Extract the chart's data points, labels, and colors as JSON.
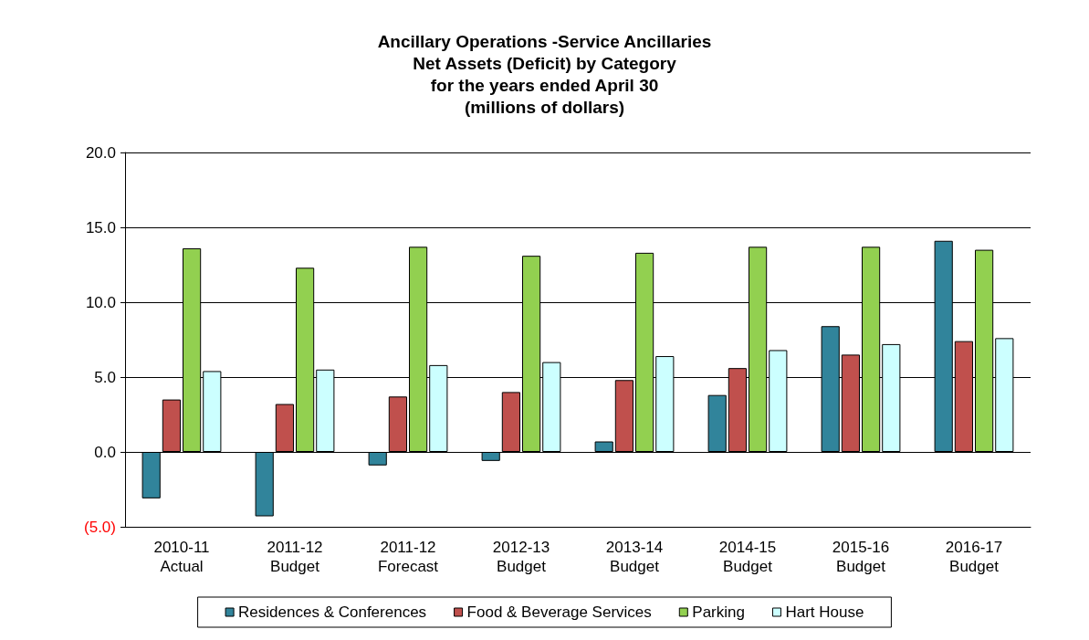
{
  "chart_data": {
    "type": "bar",
    "title": "Ancillary Operations -Service Ancillaries\nNet Assets (Deficit) by Category\nfor the years ended April 30\n(millions of dollars)",
    "categories": [
      "2010-11\nActual",
      "2011-12\nBudget",
      "2011-12\nForecast",
      "2012-13\nBudget",
      "2013-14\nBudget",
      "2014-15\nBudget",
      "2015-16\nBudget",
      "2016-17\nBudget"
    ],
    "series": [
      {
        "name": "Residences & Conferences",
        "color": "#31849b",
        "values": [
          -3.1,
          -4.3,
          -0.9,
          -0.6,
          0.7,
          3.8,
          8.4,
          14.1
        ]
      },
      {
        "name": "Food & Beverage Services",
        "color": "#c0504d",
        "values": [
          3.5,
          3.2,
          3.7,
          4.0,
          4.8,
          5.6,
          6.5,
          7.4
        ]
      },
      {
        "name": "Parking",
        "color": "#92d050",
        "values": [
          13.6,
          12.3,
          13.7,
          13.1,
          13.3,
          13.7,
          13.7,
          13.5
        ]
      },
      {
        "name": "Hart House",
        "color": "#ccffff",
        "values": [
          5.4,
          5.5,
          5.8,
          6.0,
          6.4,
          6.8,
          7.2,
          7.6
        ]
      }
    ],
    "ylim": [
      -5,
      20
    ],
    "yticks": [
      {
        "value": -5,
        "label": "(5.0)"
      },
      {
        "value": 0,
        "label": "0.0"
      },
      {
        "value": 5,
        "label": "5.0"
      },
      {
        "value": 10,
        "label": "10.0"
      },
      {
        "value": 15,
        "label": "15.0"
      },
      {
        "value": 20,
        "label": "20.0"
      }
    ],
    "grid": "y",
    "legend": "bottom"
  }
}
